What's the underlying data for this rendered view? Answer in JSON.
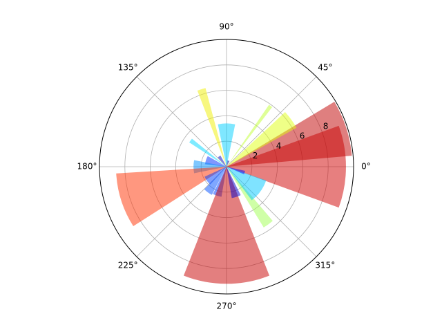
{
  "chart_data": {
    "type": "polar_bar",
    "theta": [
      0,
      18,
      36,
      54,
      72,
      90,
      108,
      126,
      144,
      162,
      180,
      198,
      216,
      234,
      252,
      270,
      288,
      306,
      324,
      342
    ],
    "values": [
      9.4,
      9.9,
      6.3,
      5.9,
      0.5,
      3.4,
      6.4,
      1.0,
      3.5,
      1.7,
      2.6,
      8.7,
      1.9,
      2.5,
      2.4,
      9.2,
      2.5,
      5.6,
      3.3,
      1.5
    ],
    "widths": [
      40,
      26,
      14,
      3,
      20,
      23,
      6,
      15,
      6,
      23,
      23,
      29,
      23,
      17,
      17,
      43,
      17,
      9,
      34,
      11
    ],
    "colors": [
      "#d00000",
      "#c00000",
      "#e0ff10",
      "#c0ff30",
      "#00009f",
      "#00d0ff",
      "#f0f000",
      "#0000c0",
      "#00d8ff",
      "#0030ff",
      "#0090ff",
      "#ff3000",
      "#0040ff",
      "#0050ff",
      "#0040ff",
      "#c80000",
      "#0000d0",
      "#a0ff50",
      "#00c8ff",
      "#0010ff"
    ],
    "xticks": [
      {
        "value": 0,
        "label": "0°"
      },
      {
        "value": 45,
        "label": "45°"
      },
      {
        "value": 90,
        "label": "90°"
      },
      {
        "value": 135,
        "label": "135°"
      },
      {
        "value": 180,
        "label": "180°"
      },
      {
        "value": 225,
        "label": "225°"
      },
      {
        "value": 270,
        "label": "270°"
      },
      {
        "value": 315,
        "label": "315°"
      }
    ],
    "ylim": [
      0,
      10
    ],
    "yticks": [
      2,
      4,
      6,
      8
    ],
    "grid": true
  }
}
